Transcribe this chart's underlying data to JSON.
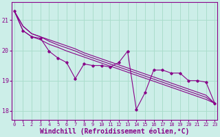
{
  "background_color": "#cceee8",
  "grid_color": "#aaddcc",
  "line_color": "#880088",
  "xlabel": "Windchill (Refroidissement éolien,°C)",
  "xlabel_fontsize": 7,
  "xtick_fontsize": 5,
  "ytick_fontsize": 6,
  "ylim": [
    17.7,
    21.6
  ],
  "xlim": [
    -0.3,
    23.3
  ],
  "yticks": [
    18,
    19,
    20,
    21
  ],
  "xticks": [
    0,
    1,
    2,
    3,
    4,
    5,
    6,
    7,
    8,
    9,
    10,
    11,
    12,
    13,
    14,
    15,
    16,
    17,
    18,
    19,
    20,
    21,
    22,
    23
  ],
  "series_data": [
    21.3,
    20.65,
    20.45,
    20.4,
    19.97,
    19.75,
    19.6,
    19.07,
    19.55,
    19.5,
    19.5,
    19.45,
    19.6,
    19.97,
    18.05,
    18.6,
    19.35,
    19.35,
    19.25,
    19.25,
    19.0,
    19.0,
    18.95,
    18.25
  ],
  "series_trend1": [
    21.3,
    20.8,
    20.55,
    20.45,
    20.35,
    20.25,
    20.15,
    20.05,
    19.92,
    19.82,
    19.72,
    19.62,
    19.52,
    19.42,
    19.32,
    19.22,
    19.12,
    19.02,
    18.92,
    18.82,
    18.72,
    18.62,
    18.52,
    18.25
  ],
  "series_trend2": [
    21.3,
    20.8,
    20.55,
    20.45,
    20.3,
    20.18,
    20.08,
    19.98,
    19.85,
    19.75,
    19.65,
    19.55,
    19.45,
    19.35,
    19.25,
    19.15,
    19.05,
    18.95,
    18.85,
    18.75,
    18.65,
    18.55,
    18.45,
    18.25
  ],
  "series_trend3": [
    21.3,
    20.65,
    20.45,
    20.35,
    20.2,
    20.1,
    19.98,
    19.88,
    19.78,
    19.68,
    19.58,
    19.48,
    19.38,
    19.28,
    19.18,
    19.08,
    18.98,
    18.88,
    18.78,
    18.68,
    18.58,
    18.48,
    18.38,
    18.25
  ]
}
